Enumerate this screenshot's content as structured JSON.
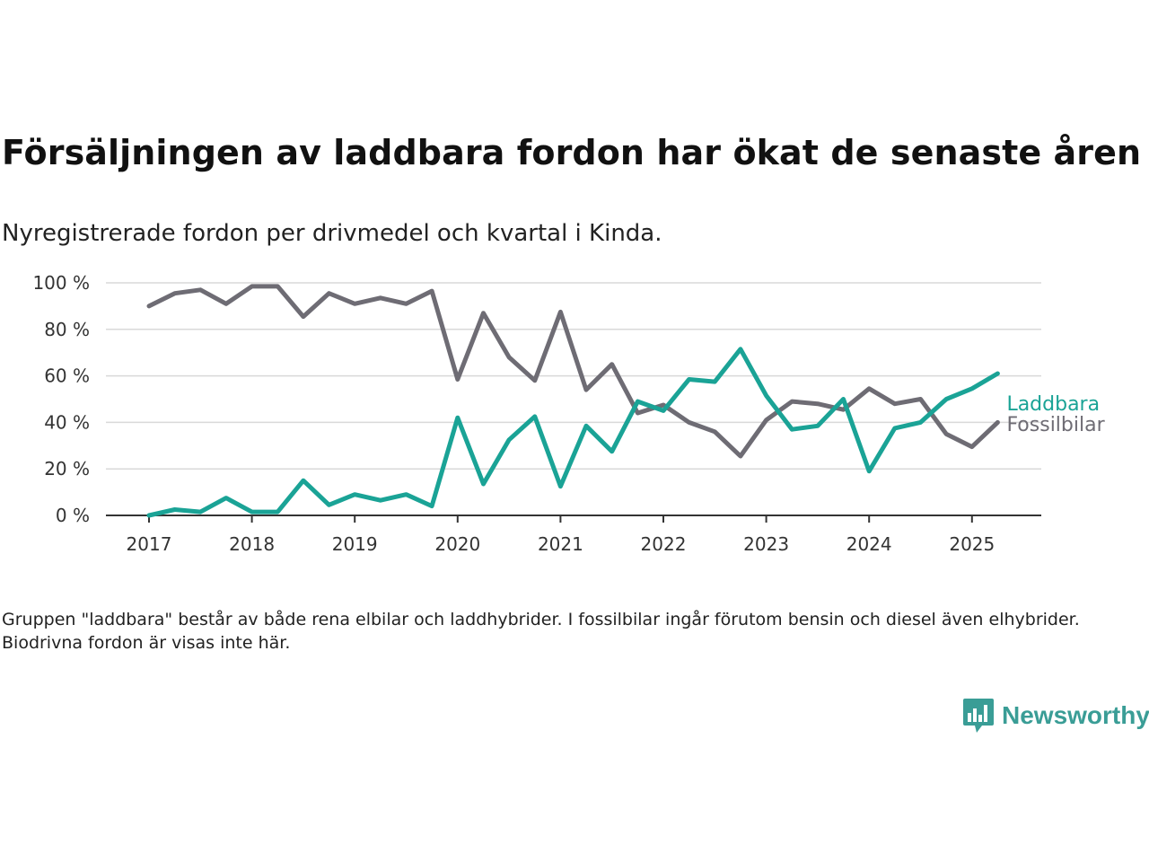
{
  "title": "Försäljningen av laddbara fordon har ökat de senaste åren",
  "subtitle": "Nyregistrerade fordon per drivmedel och kvartal i Kinda.",
  "note": "Gruppen \"laddbara\" består av både rena elbilar och laddhybrider. I fossilbilar ingår förutom bensin och diesel även elhybrider. Biodrivna fordon är visas inte här.",
  "brand": {
    "name": "Newsworthy",
    "icon": "newsworthy-logo-icon",
    "color": "#3a9d96"
  },
  "chart_data": {
    "type": "line",
    "title": "Försäljningen av laddbara fordon har ökat de senaste åren",
    "subtitle": "Nyregistrerade fordon per drivmedel och kvartal i Kinda.",
    "xlabel": "",
    "ylabel": "",
    "x": [
      "2017 Q1",
      "2017 Q2",
      "2017 Q3",
      "2017 Q4",
      "2018 Q1",
      "2018 Q2",
      "2018 Q3",
      "2018 Q4",
      "2019 Q1",
      "2019 Q2",
      "2019 Q3",
      "2019 Q4",
      "2020 Q1",
      "2020 Q2",
      "2020 Q3",
      "2020 Q4",
      "2021 Q1",
      "2021 Q2",
      "2021 Q3",
      "2021 Q4",
      "2022 Q1",
      "2022 Q2",
      "2022 Q3",
      "2022 Q4",
      "2023 Q1",
      "2023 Q2",
      "2023 Q3",
      "2023 Q4",
      "2024 Q1",
      "2024 Q2",
      "2024 Q3",
      "2024 Q4",
      "2025 Q1",
      "2025 Q2"
    ],
    "x_ticks": [
      "2017",
      "2018",
      "2019",
      "2020",
      "2021",
      "2022",
      "2023",
      "2024",
      "2025"
    ],
    "y_ticks": [
      "0 %",
      "20 %",
      "40 %",
      "60 %",
      "80 %",
      "100 %"
    ],
    "ylim": [
      0,
      100
    ],
    "grid": true,
    "legend": "right end of lines",
    "series": [
      {
        "name": "Laddbara",
        "color": "#1aa396",
        "values": [
          0,
          2.5,
          1.5,
          7.5,
          1.5,
          1.5,
          15,
          4.5,
          9,
          6.5,
          9,
          4,
          42,
          13.5,
          32.5,
          42.5,
          12.5,
          38.5,
          27.5,
          49,
          45,
          58.5,
          57.5,
          71.5,
          51.5,
          37,
          38.5,
          50,
          19,
          37.5,
          40,
          50,
          54.5,
          61
        ]
      },
      {
        "name": "Fossilbilar",
        "color": "#6e6c74",
        "values": [
          90,
          95.5,
          97,
          91,
          98.5,
          98.5,
          85.5,
          95.5,
          91,
          93.5,
          91,
          96.5,
          58.5,
          87,
          68,
          58,
          87.5,
          54,
          65,
          44,
          47.5,
          40,
          36,
          25.5,
          41,
          49,
          48,
          45.5,
          54.5,
          48,
          50,
          35,
          29.5,
          40
        ]
      }
    ]
  }
}
